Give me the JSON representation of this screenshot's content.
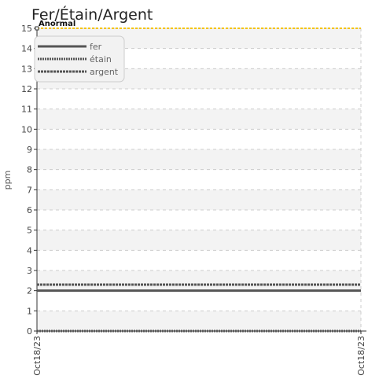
{
  "chart_data": {
    "type": "line",
    "title": "Fer/Étain/Argent",
    "xlabel": "",
    "ylabel": "ppm",
    "x": [
      "Oct18/23",
      "Oct18/23"
    ],
    "ylim": [
      0,
      15
    ],
    "yticks": [
      0,
      1,
      2,
      3,
      4,
      5,
      6,
      7,
      8,
      9,
      10,
      11,
      12,
      13,
      14,
      15
    ],
    "grid": true,
    "legend_position": "top-left",
    "series": [
      {
        "name": "fer",
        "values": [
          2,
          2
        ],
        "color": "#555555",
        "style": "solid"
      },
      {
        "name": "étain",
        "values": [
          0,
          0
        ],
        "color": "#555555",
        "style": "dotted"
      },
      {
        "name": "argent",
        "values": [
          2.3,
          2.3
        ],
        "color": "#555555",
        "style": "dashed"
      }
    ],
    "thresholds": [
      {
        "label": "Anormal",
        "value": 15,
        "color": "#f5c400"
      }
    ]
  }
}
